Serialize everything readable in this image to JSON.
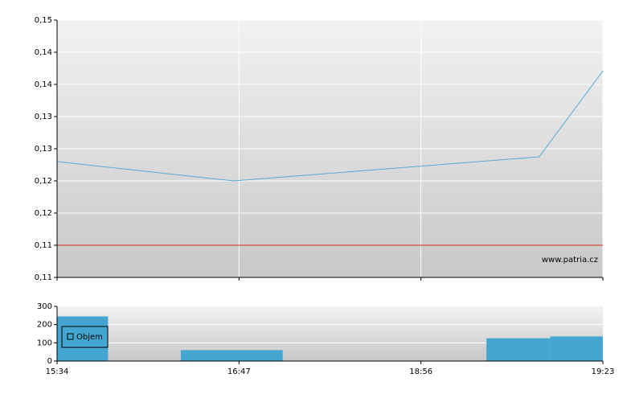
{
  "chart_data": [
    {
      "type": "line",
      "watermark": "www.patria.cz",
      "x": [
        0,
        0.97,
        2.65,
        3
      ],
      "values": [
        0.128,
        0.125,
        0.12875,
        0.1421
      ],
      "color": "#5aa9d6",
      "reference_line": 0.115,
      "reference_color": "#d9261c",
      "xlim": [
        0,
        3
      ],
      "xticks": [
        0,
        1,
        2,
        3
      ],
      "ylim": [
        0.11,
        0.15
      ],
      "yticks": [
        {
          "value": 0.11,
          "label": "0,11"
        },
        {
          "value": 0.115,
          "label": "0,11"
        },
        {
          "value": 0.12,
          "label": "0,12"
        },
        {
          "value": 0.125,
          "label": "0,12"
        },
        {
          "value": 0.13,
          "label": "0,13"
        },
        {
          "value": 0.135,
          "label": "0,13"
        },
        {
          "value": 0.14,
          "label": "0,14"
        },
        {
          "value": 0.145,
          "label": "0,14"
        },
        {
          "value": 0.15,
          "label": "0,15"
        }
      ],
      "grid": true
    },
    {
      "type": "bar",
      "legend": "upper left",
      "series": [
        {
          "name": "Objem",
          "color": "#44a6d0",
          "values": [
            245,
            60,
            125,
            135
          ]
        }
      ],
      "x_start": [
        0,
        0.68,
        2.36,
        2.71
      ],
      "x_end": [
        0.28,
        1.24,
        2.71,
        3
      ],
      "xlim": [
        0,
        3
      ],
      "xticks": [
        {
          "value": 0,
          "label": "15:34"
        },
        {
          "value": 1,
          "label": "16:47"
        },
        {
          "value": 2,
          "label": "18:56"
        },
        {
          "value": 3,
          "label": "19:23"
        }
      ],
      "ylim": [
        0,
        300
      ],
      "yticks": [
        0,
        100,
        200,
        300
      ],
      "grid": true
    }
  ]
}
